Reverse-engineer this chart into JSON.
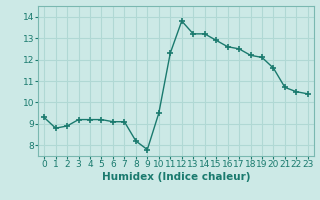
{
  "x": [
    0,
    1,
    2,
    3,
    4,
    5,
    6,
    7,
    8,
    9,
    10,
    11,
    12,
    13,
    14,
    15,
    16,
    17,
    18,
    19,
    20,
    21,
    22,
    23
  ],
  "y": [
    9.3,
    8.8,
    8.9,
    9.2,
    9.2,
    9.2,
    9.1,
    9.1,
    8.2,
    7.8,
    9.5,
    12.3,
    13.8,
    13.2,
    13.2,
    12.9,
    12.6,
    12.5,
    12.2,
    12.1,
    11.6,
    10.7,
    10.5,
    10.4
  ],
  "line_color": "#1a7a6e",
  "marker": "+",
  "marker_size": 4,
  "linewidth": 1.0,
  "bg_color": "#cce9e6",
  "grid_color": "#b0d8d4",
  "xlabel": "Humidex (Indice chaleur)",
  "xlim": [
    -0.5,
    23.5
  ],
  "ylim": [
    7.5,
    14.5
  ],
  "yticks": [
    8,
    9,
    10,
    11,
    12,
    13,
    14
  ],
  "xticks": [
    0,
    1,
    2,
    3,
    4,
    5,
    6,
    7,
    8,
    9,
    10,
    11,
    12,
    13,
    14,
    15,
    16,
    17,
    18,
    19,
    20,
    21,
    22,
    23
  ],
  "tick_fontsize": 6.5,
  "xlabel_fontsize": 7.5,
  "tick_color": "#1a7a6e",
  "label_color": "#1a7a6e",
  "spine_color": "#7ab8b0"
}
